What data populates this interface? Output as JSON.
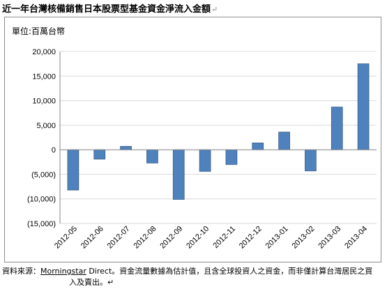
{
  "document": {
    "title": "近一年台灣核備銷售日本股票型基金資金淨流入金額",
    "para_mark": "↵",
    "footnote_prefix": "資料來源：",
    "footnote_brand": "Morningstar",
    "footnote_rest": " Direct。資金流量數據為估計值，且含全球投資人之資金，而非僅計算台灣居民之買",
    "footnote_line2": "入及賣出。↵"
  },
  "chart_data": {
    "type": "bar",
    "unit_label": "單位:百萬台幣",
    "categories": [
      "2012-05",
      "2012-06",
      "2012-07",
      "2012-08",
      "2012-09",
      "2012-10",
      "2012-11",
      "2012-12",
      "2013-01",
      "2013-02",
      "2013-03",
      "2013-04"
    ],
    "values": [
      -8200,
      -1900,
      700,
      -2700,
      -10100,
      -4400,
      -3000,
      1400,
      3600,
      -4300,
      8700,
      17500
    ],
    "ylim": [
      -15000,
      20000
    ],
    "yticks": [
      20000,
      15000,
      10000,
      5000,
      0,
      -5000,
      -10000,
      -15000
    ],
    "ytick_labels": [
      "20,000",
      "15,000",
      "10,000",
      "5,000",
      "0",
      "(5,000)",
      "(10,000)",
      "(15,000)"
    ],
    "grid": true,
    "bar_color": "#4f81bd",
    "bar_edge_color": "#385d8a",
    "grid_color": "#d9d9d9"
  }
}
